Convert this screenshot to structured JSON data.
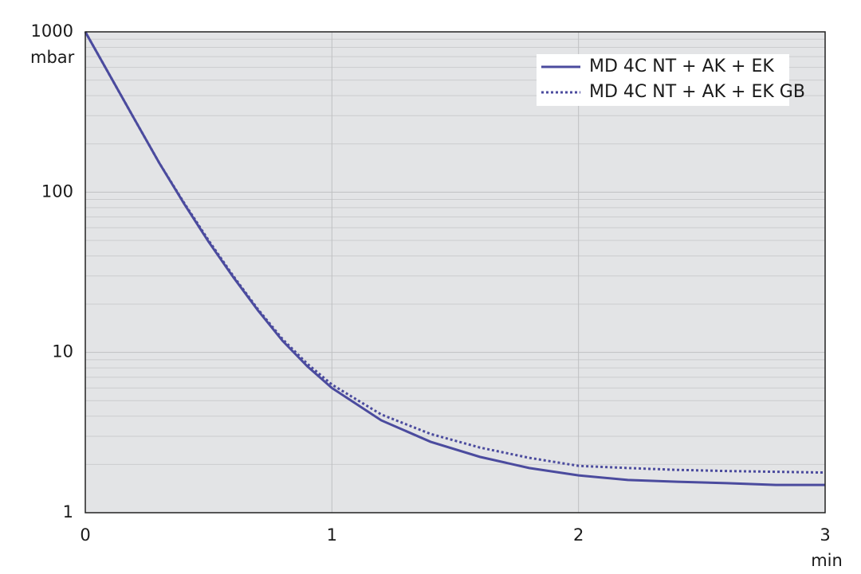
{
  "chart_data": {
    "type": "line",
    "x_label": "min",
    "y_label": "mbar",
    "x": [
      0,
      0.1,
      0.2,
      0.3,
      0.4,
      0.5,
      0.6,
      0.7,
      0.8,
      0.9,
      1.0,
      1.2,
      1.4,
      1.6,
      1.8,
      2.0,
      2.2,
      2.4,
      2.6,
      2.8,
      3.0
    ],
    "series": [
      {
        "name": "MD 4C NT + AK + EK",
        "color": "#4b4b9e",
        "dash": false,
        "values": [
          1000,
          533,
          284,
          152,
          85,
          49,
          29.5,
          18.3,
          11.8,
          8.2,
          6.0,
          3.77,
          2.77,
          2.23,
          1.9,
          1.71,
          1.6,
          1.56,
          1.53,
          1.49,
          1.49
        ]
      },
      {
        "name": "MD 4C NT + AK + EK GB",
        "color": "#4b4b9e",
        "dash": true,
        "values": [
          1000,
          533,
          284,
          152,
          86,
          50,
          30,
          18.6,
          12.1,
          8.5,
          6.3,
          4.1,
          3.1,
          2.55,
          2.2,
          1.96,
          1.9,
          1.85,
          1.82,
          1.8,
          1.78
        ]
      }
    ],
    "xlim": [
      0,
      3
    ],
    "xticks": [
      0,
      1,
      2,
      3
    ],
    "ylim": [
      1,
      1000
    ],
    "yticks": [
      1,
      10,
      100,
      1000
    ],
    "ylog": true,
    "grid": true,
    "legend": "upper right"
  }
}
